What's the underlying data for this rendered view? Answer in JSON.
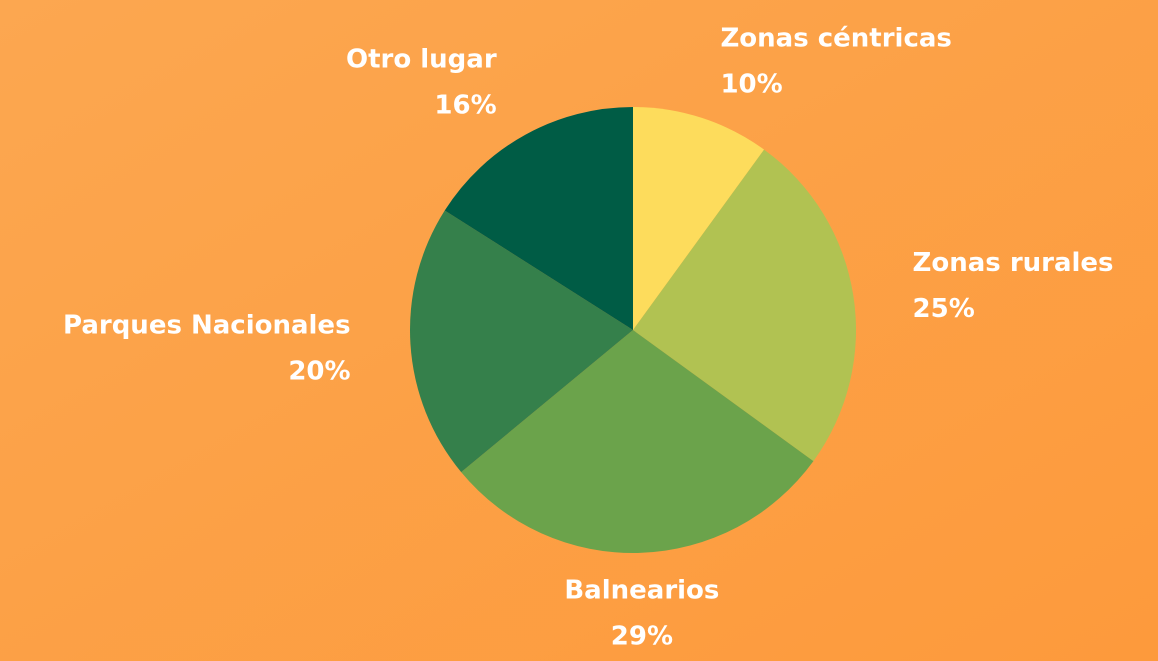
{
  "chart_data": {
    "type": "pie",
    "categories": [
      "Zonas céntricas",
      "Zonas rurales",
      "Balnearios",
      "Parques Nacionales",
      "Otro lugar"
    ],
    "values": [
      10,
      25,
      29,
      20,
      16
    ],
    "value_labels": [
      "10%",
      "25%",
      "29%",
      "20%",
      "16%"
    ],
    "colors": [
      "#fddc5c",
      "#b1c252",
      "#6ba34b",
      "#35804b",
      "#005c45"
    ]
  }
}
